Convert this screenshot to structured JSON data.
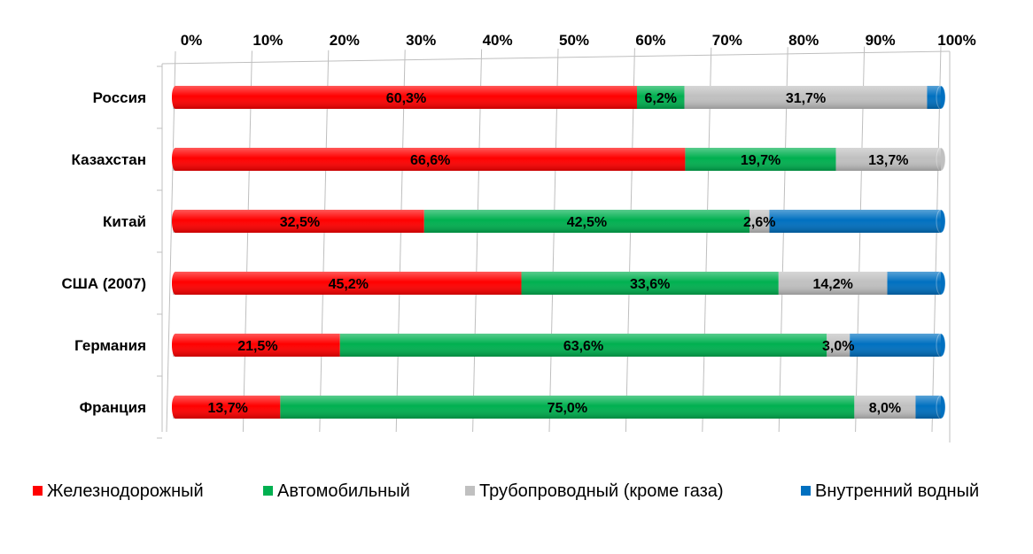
{
  "chart_data": {
    "type": "bar",
    "orientation": "horizontal",
    "stacked": "percent",
    "xlim": [
      0,
      100
    ],
    "x_ticks": [
      "0%",
      "10%",
      "20%",
      "30%",
      "40%",
      "50%",
      "60%",
      "70%",
      "80%",
      "90%",
      "100%"
    ],
    "categories": [
      "Россия",
      "Казахстан",
      "Китай",
      "США (2007)",
      "Германия",
      "Франция"
    ],
    "series": [
      {
        "name": "Железнодорожный",
        "color": "#ff0000",
        "values": [
          60.3,
          66.6,
          32.5,
          45.2,
          21.5,
          13.7
        ],
        "labels": [
          "60,3%",
          "66,6%",
          "32,5%",
          "45,2%",
          "21,5%",
          "13,7%"
        ]
      },
      {
        "name": "Автомобильный",
        "color": "#00b050",
        "values": [
          6.2,
          19.7,
          42.5,
          33.6,
          63.6,
          75.0
        ],
        "labels": [
          "6,2%",
          "19,7%",
          "42,5%",
          "33,6%",
          "63,6%",
          "75,0%"
        ]
      },
      {
        "name": "Трубопроводный (кроме газа)",
        "color": "#c0c0c0",
        "values": [
          31.7,
          13.7,
          2.6,
          14.2,
          3.0,
          8.0
        ],
        "labels": [
          "31,7%",
          "13,7%",
          "2,6%",
          "14,2%",
          "3,0%",
          "8,0%"
        ]
      },
      {
        "name": "Внутренний водный",
        "color": "#0070c0",
        "values": [
          1.8,
          0.0,
          22.4,
          7.0,
          11.9,
          3.3
        ],
        "labels": [
          "",
          "",
          "",
          "",
          "",
          ""
        ]
      }
    ],
    "axis_position": "top",
    "grid": true,
    "legend_position": "bottom"
  }
}
